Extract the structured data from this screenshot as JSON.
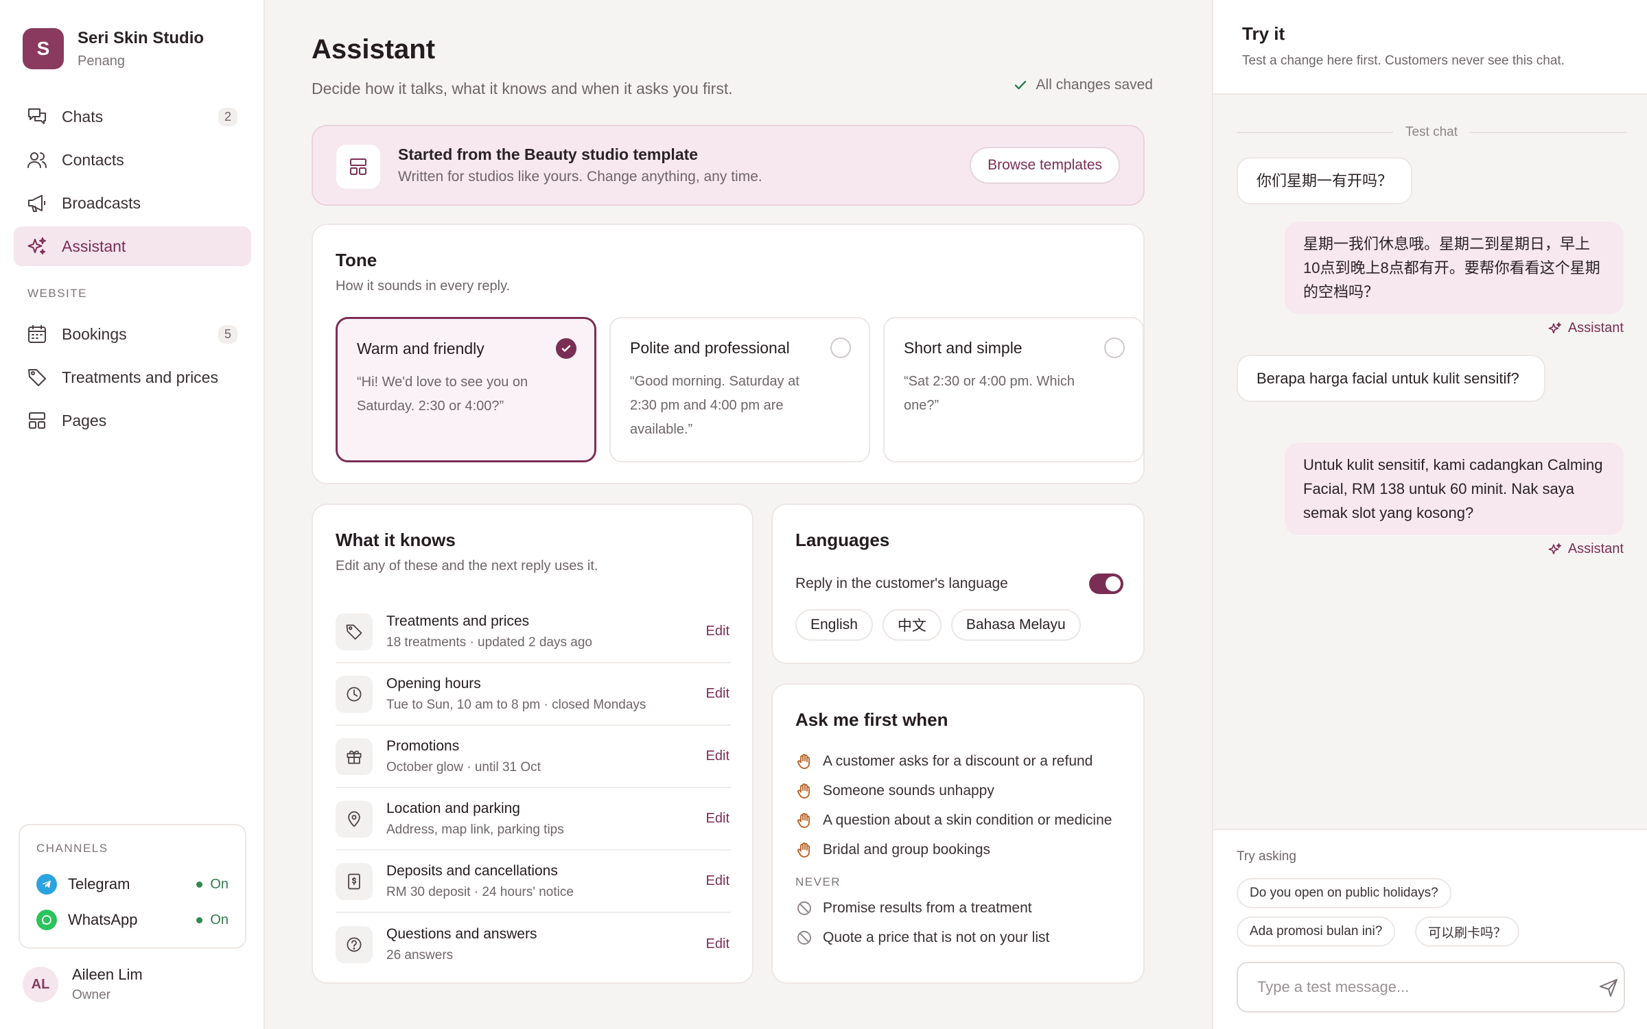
{
  "brand": {
    "initial": "S",
    "name": "Seri Skin Studio",
    "location": "Penang"
  },
  "nav": {
    "main": [
      {
        "label": "Chats",
        "count": "2",
        "icon": "chat-icon"
      },
      {
        "label": "Contacts",
        "count": "",
        "icon": "contacts-icon"
      },
      {
        "label": "Broadcasts",
        "count": "",
        "icon": "megaphone-icon"
      },
      {
        "label": "Assistant",
        "count": "",
        "icon": "sparkle-icon",
        "active": true
      }
    ],
    "website_section": "WEBSITE",
    "website": [
      {
        "label": "Bookings",
        "count": "5",
        "icon": "calendar-icon"
      },
      {
        "label": "Treatments and prices",
        "count": "",
        "icon": "tag-icon"
      },
      {
        "label": "Pages",
        "count": "",
        "icon": "layout-icon"
      }
    ]
  },
  "channels": {
    "title": "CHANNELS",
    "items": [
      {
        "name": "Telegram",
        "status": "On",
        "color": "#2aa3e0"
      },
      {
        "name": "WhatsApp",
        "status": "On",
        "color": "#2bc35c"
      }
    ]
  },
  "user": {
    "initials": "AL",
    "name": "Aileen Lim",
    "role": "Owner"
  },
  "page": {
    "title": "Assistant",
    "subtitle": "Decide how it talks, what it knows and when it asks you first.",
    "saved": "All changes saved"
  },
  "template": {
    "title": "Started from the Beauty studio template",
    "subtitle": "Written for studios like yours. Change anything, any time.",
    "button": "Browse templates"
  },
  "tone": {
    "title": "Tone",
    "subtitle": "How it sounds in every reply.",
    "options": [
      {
        "name": "Warm and friendly",
        "example": "“Hi! We'd love to see you on Saturday. 2:30 or 4:00?”",
        "selected": true
      },
      {
        "name": "Polite and professional",
        "example": "“Good morning. Saturday at 2:30 pm and 4:00 pm are available.”",
        "selected": false
      },
      {
        "name": "Short and simple",
        "example": "“Sat 2:30 or 4:00 pm. Which one?”",
        "selected": false
      }
    ]
  },
  "knows": {
    "title": "What it knows",
    "subtitle": "Edit any of these and the next reply uses it.",
    "edit_label": "Edit",
    "items": [
      {
        "title": "Treatments and prices",
        "meta": "18 treatments · updated 2 days ago",
        "icon": "tag-icon"
      },
      {
        "title": "Opening hours",
        "meta": "Tue to Sun, 10 am to 8 pm · closed Mondays",
        "icon": "clock-icon"
      },
      {
        "title": "Promotions",
        "meta": "October glow · until 31 Oct",
        "icon": "gift-icon"
      },
      {
        "title": "Location and parking",
        "meta": "Address, map link, parking tips",
        "icon": "map-pin-icon"
      },
      {
        "title": "Deposits and cancellations",
        "meta": "RM 30 deposit · 24 hours' notice",
        "icon": "receipt-icon"
      },
      {
        "title": "Questions and answers",
        "meta": "26 answers",
        "icon": "question-icon"
      }
    ]
  },
  "languages": {
    "title": "Languages",
    "toggle_label": "Reply in the customer's language",
    "toggle_on": true,
    "chips": [
      "English",
      "中文",
      "Bahasa Melayu"
    ]
  },
  "ask_first": {
    "title": "Ask me first when",
    "items": [
      "A customer asks for a discount or a refund",
      "Someone sounds unhappy",
      "A question about a skin condition or medicine",
      "Bridal and group bookings"
    ],
    "never_title": "NEVER",
    "never_items": [
      "Promise results from a treatment",
      "Quote a price that is not on your list"
    ]
  },
  "try_it": {
    "title": "Try it",
    "subtitle": "Test a change here first. Customers never see this chat.",
    "chat_label": "Test chat",
    "messages": [
      {
        "from": "customer",
        "text": "你们星期一有开吗？"
      },
      {
        "from": "bot",
        "text": "星期一我们休息哦。星期二到星期日，早上10点到晚上8点都有开。要帮你看看这个星期的空档吗？",
        "tag": "Assistant"
      },
      {
        "from": "customer",
        "text": "Berapa harga facial untuk kulit sensitif?"
      },
      {
        "from": "bot",
        "text": "Untuk kulit sensitif, kami cadangkan Calming Facial, RM 138 untuk 60 minit. Nak saya semak slot yang kosong?",
        "tag": "Assistant"
      }
    ],
    "try_label": "Try asking",
    "suggestions": [
      "Do you open on public holidays?",
      "Ada promosi bulan ini?",
      "可以刷卡吗？"
    ],
    "input_placeholder": "Type a test message..."
  }
}
